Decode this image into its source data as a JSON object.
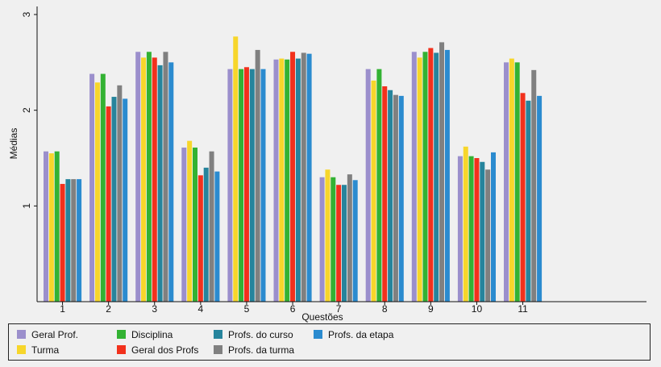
{
  "chart_data": {
    "type": "bar",
    "xlabel": "Questões",
    "ylabel": "Médias",
    "ylim": [
      0,
      3.05
    ],
    "yticks": [
      1,
      2,
      3
    ],
    "categories": [
      "1",
      "2",
      "3",
      "4",
      "5",
      "6",
      "7",
      "8",
      "9",
      "10",
      "11"
    ],
    "series": [
      {
        "name": "Geral Prof.",
        "color": "#9b8fcc",
        "values": [
          1.57,
          2.38,
          2.61,
          1.61,
          2.43,
          2.53,
          1.3,
          2.43,
          2.61,
          1.52,
          2.5
        ]
      },
      {
        "name": "Turma",
        "color": "#f7d62b",
        "values": [
          1.55,
          2.29,
          2.55,
          1.68,
          2.77,
          2.54,
          1.38,
          2.31,
          2.55,
          1.62,
          2.54
        ]
      },
      {
        "name": "Disciplina",
        "color": "#33b233",
        "values": [
          1.57,
          2.38,
          2.61,
          1.61,
          2.43,
          2.53,
          1.3,
          2.43,
          2.61,
          1.52,
          2.5
        ]
      },
      {
        "name": "Geral dos Profs",
        "color": "#f2311c",
        "values": [
          1.23,
          2.04,
          2.55,
          1.32,
          2.45,
          2.61,
          1.22,
          2.25,
          2.65,
          1.5,
          2.18
        ]
      },
      {
        "name": "Profs. do curso",
        "color": "#26849c",
        "values": [
          1.28,
          2.14,
          2.47,
          1.4,
          2.43,
          2.54,
          1.22,
          2.21,
          2.6,
          1.46,
          2.1
        ]
      },
      {
        "name": "Profs. da turma",
        "color": "#808080",
        "values": [
          1.28,
          2.26,
          2.61,
          1.57,
          2.63,
          2.6,
          1.33,
          2.16,
          2.71,
          1.38,
          2.42
        ]
      },
      {
        "name": "Profs. da etapa",
        "color": "#2b8bcf",
        "values": [
          1.28,
          2.12,
          2.5,
          1.36,
          2.43,
          2.59,
          1.27,
          2.15,
          2.63,
          1.56,
          2.15
        ]
      }
    ],
    "legend_position": "bottom",
    "grid": false
  }
}
